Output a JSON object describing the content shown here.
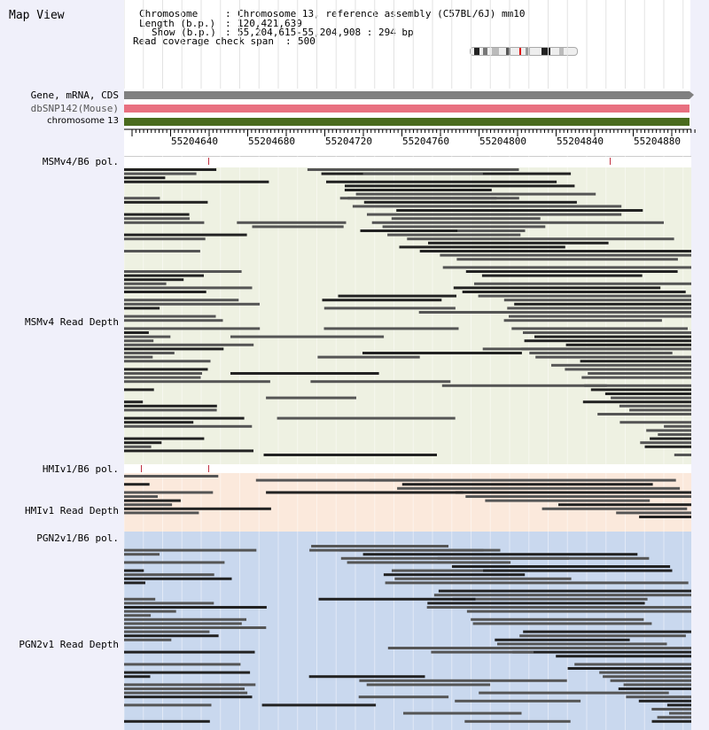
{
  "title": "Map View",
  "info": {
    "chromosome_label": "Chromosome",
    "chromosome_value": "Chromosome 13, reference assembly (C57BL/6J) mm10",
    "length_label": "Length (b.p.)",
    "length_value": "120,421,639",
    "show_label": "Show (b.p.)",
    "show_value": "55,204,615-55,204,908 : 294 bp",
    "coverage_label": "Read coverage check span",
    "coverage_value": "500"
  },
  "tracks": {
    "gene": "Gene, mRNA, CDS",
    "snp": "dbSNP142(Mouse)",
    "chrom": "chromosome 13"
  },
  "ruler": {
    "start_bp": 55204615,
    "end_bp": 55204908,
    "labels": [
      "55204640",
      "55204680",
      "55204720",
      "55204760",
      "55204800",
      "55204840",
      "55204880"
    ]
  },
  "panels": [
    {
      "pol_label": "MSMv4/B6 pol.",
      "depth_label": "MSMv4 Read Depth",
      "color": "#eef1e2"
    },
    {
      "pol_label": "HMIv1/B6 pol.",
      "depth_label": "HMIv1 Read Depth",
      "color": "#fbe9dc"
    },
    {
      "pol_label": "PGN2v1/B6 pol.",
      "depth_label": "PGN2v1 Read Depth",
      "color": "#c9d8ee"
    }
  ],
  "colors": {
    "gene": "#808080",
    "snp": "#e87080",
    "chrom": "#4a6b1e",
    "read": "#555555",
    "read_dark": "#222222"
  }
}
